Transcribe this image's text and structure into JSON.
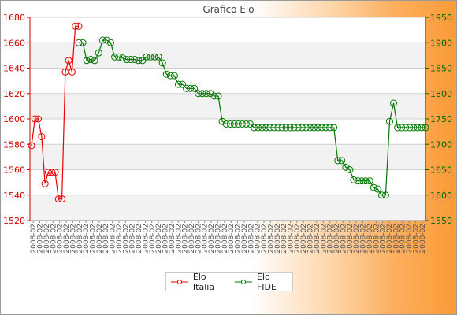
{
  "chart_data": {
    "type": "line",
    "title": "Grafico Elo",
    "y_left_ticks": [
      "1520",
      "1540",
      "1560",
      "1580",
      "1600",
      "1620",
      "1640",
      "1660",
      "1680"
    ],
    "y_right_ticks": [
      "1550",
      "1600",
      "1650",
      "1700",
      "1750",
      "1800",
      "1850",
      "1900",
      "1950"
    ],
    "ylim_left": [
      1520,
      1680
    ],
    "ylim_right": [
      1550,
      1950
    ],
    "x_tick_text": "2008-02",
    "series": [
      {
        "name": "Elo Italia",
        "axis": "left",
        "color": "#ee0000",
        "values": [
          1579,
          1600,
          1600,
          1586,
          1549,
          1558,
          1558,
          1558,
          1537,
          1537,
          1637,
          1646,
          1637,
          1673,
          1673
        ]
      },
      {
        "name": "Elo FIDE",
        "axis": "right",
        "color": "#007700",
        "values": [
          1900,
          1900,
          1865,
          1867,
          1865,
          1880,
          1905,
          1905,
          1900,
          1872,
          1872,
          1870,
          1867,
          1867,
          1867,
          1865,
          1865,
          1872,
          1872,
          1872,
          1872,
          1860,
          1838,
          1835,
          1835,
          1818,
          1818,
          1810,
          1810,
          1810,
          1800,
          1800,
          1800,
          1800,
          1795,
          1795,
          1745,
          1740,
          1740,
          1740,
          1740,
          1740,
          1740,
          1740,
          1733,
          1733,
          1733,
          1733,
          1733,
          1733,
          1733,
          1733,
          1733,
          1733,
          1733,
          1733,
          1733,
          1733,
          1733,
          1733,
          1733,
          1733,
          1733,
          1733,
          1733,
          1668,
          1668,
          1655,
          1650,
          1630,
          1628,
          1628,
          1628,
          1628,
          1615,
          1612,
          1600,
          1600,
          1745,
          1781,
          1733,
          1733,
          1733,
          1733,
          1733,
          1733,
          1733,
          1733
        ]
      }
    ],
    "grid": true,
    "legend_position": "bottom-center"
  }
}
